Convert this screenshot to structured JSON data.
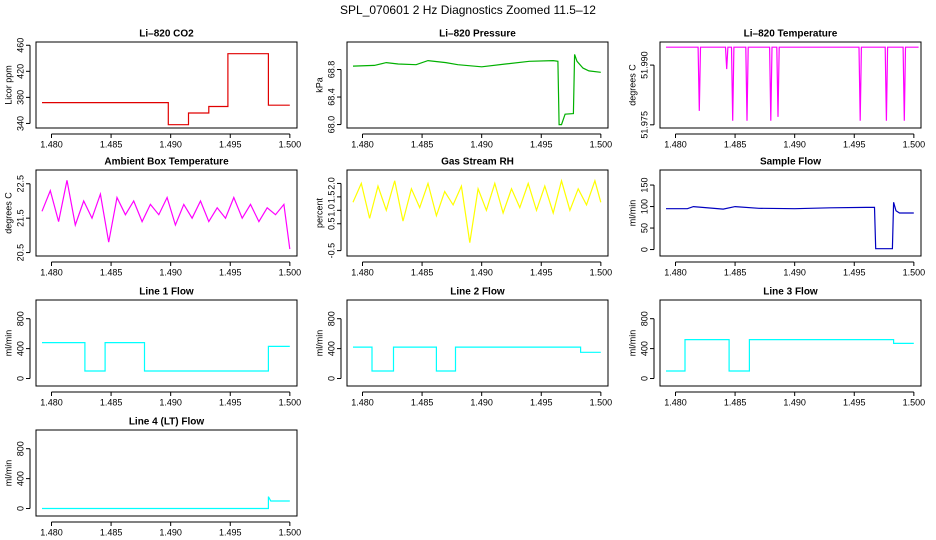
{
  "title": "SPL_070601  2 Hz Diagnostics Zoomed 11.5–12",
  "chart_data": [
    {
      "type": "line",
      "title": "Li–820 CO2",
      "y_label": "Licor ppm",
      "color": "#e00000",
      "xlim": [
        1.4787,
        1.5006
      ],
      "xticks": [
        {
          "value": 1.48,
          "label": "1.480"
        },
        1.485,
        {
          "value": 1.49,
          "label": "1.490"
        },
        1.495,
        {
          "value": 1.5,
          "label": "1.500"
        }
      ],
      "ylim": [
        333,
        465
      ],
      "yticks": [
        340,
        380,
        420,
        460
      ],
      "x": [
        1.4792,
        1.485,
        1.4898,
        1.4898,
        1.4915,
        1.4915,
        1.4932,
        1.4932,
        1.4948,
        1.4948,
        1.4982,
        1.4982,
        1.5
      ],
      "values": [
        372,
        372,
        372,
        338,
        338,
        356,
        356,
        366,
        366,
        447,
        447,
        368,
        368
      ]
    },
    {
      "type": "line",
      "title": "Li–820 Pressure",
      "y_label": "kPa",
      "color": "#00b000",
      "xlim": [
        1.4787,
        1.5006
      ],
      "xticks": [
        {
          "value": 1.48,
          "label": "1.480"
        },
        1.485,
        {
          "value": 1.49,
          "label": "1.490"
        },
        1.495,
        {
          "value": 1.5,
          "label": "1.500"
        }
      ],
      "ylim": [
        67.95,
        69.2
      ],
      "yticks": [
        {
          "value": 68.0,
          "label": "68.0"
        },
        68.4,
        68.8
      ],
      "x": [
        1.4792,
        1.481,
        1.482,
        1.483,
        1.4845,
        1.4855,
        1.487,
        1.488,
        1.49,
        1.492,
        1.494,
        1.496,
        1.4964,
        1.4965,
        1.4967,
        1.497,
        1.4977,
        1.4978,
        1.498,
        1.4985,
        1.499,
        1.5
      ],
      "values": [
        68.85,
        68.86,
        68.9,
        68.88,
        68.87,
        68.93,
        68.9,
        68.87,
        68.84,
        68.88,
        68.92,
        68.93,
        68.92,
        68.0,
        68.0,
        68.15,
        68.16,
        69.02,
        68.92,
        68.82,
        68.78,
        68.76
      ]
    },
    {
      "type": "line",
      "title": "Li–820 Temperature",
      "y_label": "degrees C",
      "color": "#ff00ff",
      "xlim": [
        1.4787,
        1.5006
      ],
      "xticks": [
        {
          "value": 1.48,
          "label": "1.480"
        },
        1.485,
        {
          "value": 1.49,
          "label": "1.490"
        },
        1.495,
        {
          "value": 1.5,
          "label": "1.500"
        }
      ],
      "ylim": [
        51.9742,
        51.9958
      ],
      "yticks": [
        51.975,
        {
          "value": 51.99,
          "label": "51.990"
        }
      ],
      "x": [
        1.4792,
        1.4819,
        1.482,
        1.4821,
        1.4842,
        1.4843,
        1.4844,
        1.4847,
        1.4848,
        1.4849,
        1.4859,
        1.486,
        1.4861,
        1.4879,
        1.488,
        1.4881,
        1.4885,
        1.4886,
        1.4887,
        1.4954,
        1.4955,
        1.4956,
        1.4976,
        1.4977,
        1.4978,
        1.4991,
        1.4992,
        1.4993,
        1.5004
      ],
      "values": [
        51.9945,
        51.9945,
        51.9785,
        51.9945,
        51.9945,
        51.989,
        51.9945,
        51.9945,
        51.976,
        51.9945,
        51.9945,
        51.976,
        51.9945,
        51.9945,
        51.976,
        51.9945,
        51.9945,
        51.977,
        51.9945,
        51.9945,
        51.976,
        51.9945,
        51.9945,
        51.976,
        51.9945,
        51.9945,
        51.976,
        51.9945,
        51.9945
      ]
    },
    {
      "type": "line",
      "title": "Ambient Box Temperature",
      "y_label": "degrees C",
      "color": "#ff00ff",
      "xlim": [
        1.4787,
        1.5006
      ],
      "xticks": [
        {
          "value": 1.48,
          "label": "1.480"
        },
        1.485,
        {
          "value": 1.49,
          "label": "1.490"
        },
        1.495,
        {
          "value": 1.5,
          "label": "1.500"
        }
      ],
      "ylim": [
        20.4,
        22.9
      ],
      "yticks": [
        20.5,
        21.5,
        22.5
      ],
      "x": [
        1.4792,
        1.4799,
        1.4806,
        1.4813,
        1.482,
        1.4827,
        1.4834,
        1.4841,
        1.4848,
        1.4855,
        1.4862,
        1.4869,
        1.4876,
        1.4883,
        1.489,
        1.4897,
        1.4904,
        1.4911,
        1.4918,
        1.4925,
        1.4932,
        1.4939,
        1.4946,
        1.4953,
        1.496,
        1.4967,
        1.4974,
        1.4981,
        1.4988,
        1.4995,
        1.5
      ],
      "values": [
        21.7,
        22.3,
        21.4,
        22.6,
        21.3,
        22.0,
        21.5,
        22.2,
        20.8,
        22.1,
        21.6,
        22.0,
        21.4,
        21.9,
        21.6,
        22.1,
        21.3,
        21.9,
        21.5,
        22.0,
        21.4,
        21.8,
        21.5,
        22.1,
        21.5,
        21.9,
        21.4,
        21.8,
        21.6,
        21.9,
        20.6
      ]
    },
    {
      "type": "line",
      "title": "Gas Stream RH",
      "y_label": "percent",
      "color": "#ffff00",
      "xlim": [
        1.4787,
        1.5006
      ],
      "xticks": [
        {
          "value": 1.48,
          "label": "1.480"
        },
        1.485,
        {
          "value": 1.49,
          "label": "1.490"
        },
        1.495,
        {
          "value": 1.5,
          "label": "1.500"
        }
      ],
      "ylim": [
        -0.7,
        2.5
      ],
      "yticks": [
        -0.5,
        0.5,
        {
          "value": 1.0,
          "label": "1.0"
        },
        1.5,
        {
          "value": 2.0,
          "label": "2.0"
        }
      ],
      "x": [
        1.4792,
        1.4799,
        1.4806,
        1.4813,
        1.482,
        1.4827,
        1.4834,
        1.4841,
        1.4848,
        1.4855,
        1.4862,
        1.4869,
        1.4876,
        1.4883,
        1.489,
        1.4897,
        1.4904,
        1.4911,
        1.4918,
        1.4925,
        1.4932,
        1.4939,
        1.4946,
        1.4953,
        1.496,
        1.4967,
        1.4974,
        1.4981,
        1.4988,
        1.4995,
        1.5
      ],
      "values": [
        1.3,
        2.0,
        0.7,
        1.9,
        1.0,
        2.1,
        0.6,
        1.8,
        1.1,
        2.0,
        0.8,
        1.7,
        1.2,
        1.9,
        -0.2,
        1.8,
        1.0,
        2.0,
        0.9,
        1.8,
        1.1,
        2.0,
        1.0,
        1.9,
        0.9,
        2.1,
        1.0,
        1.8,
        1.2,
        2.1,
        1.3
      ]
    },
    {
      "type": "line",
      "title": "Sample Flow",
      "y_label": "ml/min",
      "color": "#0000c0",
      "xlim": [
        1.4787,
        1.5006
      ],
      "xticks": [
        {
          "value": 1.48,
          "label": "1.480"
        },
        1.485,
        {
          "value": 1.49,
          "label": "1.490"
        },
        1.495,
        {
          "value": 1.5,
          "label": "1.500"
        }
      ],
      "ylim": [
        -15,
        185
      ],
      "yticks": [
        0,
        50,
        100,
        150
      ],
      "x": [
        1.4792,
        1.481,
        1.4815,
        1.484,
        1.485,
        1.487,
        1.49,
        1.493,
        1.496,
        1.4967,
        1.4968,
        1.4982,
        1.4983,
        1.4985,
        1.4988,
        1.5
      ],
      "values": [
        95,
        95,
        100,
        94,
        100,
        96,
        95,
        97,
        98,
        98,
        2,
        2,
        110,
        90,
        85,
        85
      ]
    },
    {
      "type": "line",
      "title": "Line 1 Flow",
      "y_label": "ml/min",
      "color": "#00ffff",
      "xlim": [
        1.4787,
        1.5006
      ],
      "xticks": [
        {
          "value": 1.48,
          "label": "1.480"
        },
        1.485,
        {
          "value": 1.49,
          "label": "1.490"
        },
        1.495,
        {
          "value": 1.5,
          "label": "1.500"
        }
      ],
      "ylim": [
        -100,
        1050
      ],
      "yticks": [
        0,
        400,
        800
      ],
      "x": [
        1.4792,
        1.4828,
        1.4828,
        1.4845,
        1.4845,
        1.4878,
        1.4878,
        1.4982,
        1.4982,
        1.5
      ],
      "values": [
        480,
        480,
        100,
        100,
        480,
        480,
        100,
        100,
        430,
        430
      ]
    },
    {
      "type": "line",
      "title": "Line 2 Flow",
      "y_label": "ml/min",
      "color": "#00ffff",
      "xlim": [
        1.4787,
        1.5006
      ],
      "xticks": [
        {
          "value": 1.48,
          "label": "1.480"
        },
        1.485,
        {
          "value": 1.49,
          "label": "1.490"
        },
        1.495,
        {
          "value": 1.5,
          "label": "1.500"
        }
      ],
      "ylim": [
        -100,
        1050
      ],
      "yticks": [
        0,
        400,
        800
      ],
      "x": [
        1.4792,
        1.4808,
        1.4808,
        1.4826,
        1.4826,
        1.4862,
        1.4862,
        1.4878,
        1.4878,
        1.4983,
        1.4983,
        1.5
      ],
      "values": [
        420,
        420,
        100,
        100,
        420,
        420,
        100,
        100,
        420,
        420,
        350,
        350
      ]
    },
    {
      "type": "line",
      "title": "Line 3 Flow",
      "y_label": "ml/min",
      "color": "#00ffff",
      "xlim": [
        1.4787,
        1.5006
      ],
      "xticks": [
        {
          "value": 1.48,
          "label": "1.480"
        },
        1.485,
        {
          "value": 1.49,
          "label": "1.490"
        },
        1.495,
        {
          "value": 1.5,
          "label": "1.500"
        }
      ],
      "ylim": [
        -100,
        1050
      ],
      "yticks": [
        0,
        400,
        800
      ],
      "x": [
        1.4792,
        1.4808,
        1.4808,
        1.4845,
        1.4845,
        1.4862,
        1.4862,
        1.4983,
        1.4983,
        1.5
      ],
      "values": [
        100,
        100,
        520,
        520,
        100,
        100,
        520,
        520,
        470,
        470
      ]
    },
    {
      "type": "line",
      "title": "Line 4 (LT) Flow",
      "y_label": "ml/min",
      "color": "#00ffff",
      "xlim": [
        1.4787,
        1.5006
      ],
      "xticks": [
        {
          "value": 1.48,
          "label": "1.480"
        },
        1.485,
        {
          "value": 1.49,
          "label": "1.490"
        },
        1.495,
        {
          "value": 1.5,
          "label": "1.500"
        }
      ],
      "ylim": [
        -100,
        1050
      ],
      "yticks": [
        0,
        400,
        800
      ],
      "x": [
        1.4792,
        1.4982,
        1.4982,
        1.4984,
        1.5
      ],
      "values": [
        0,
        0,
        160,
        100,
        100
      ]
    }
  ]
}
